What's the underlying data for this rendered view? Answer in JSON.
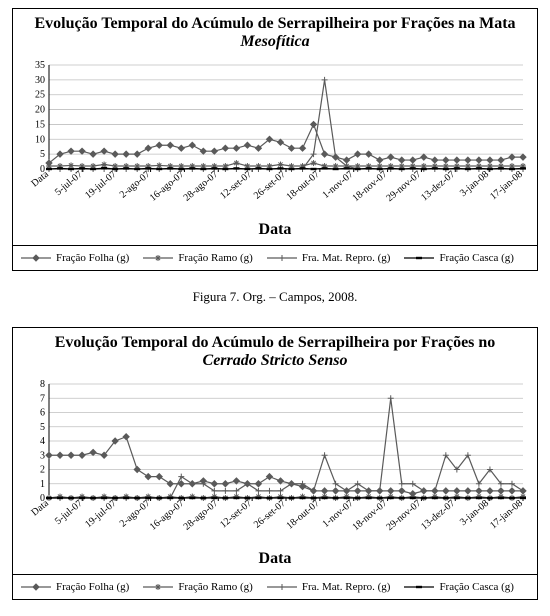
{
  "caption": "Figura 7. Org. – Campos, 2008.",
  "colors": {
    "axis": "#000000",
    "grid": "#bfbfbf",
    "series": [
      "#5a5a5a",
      "#5a5a5a",
      "#5a5a5a",
      "#000000"
    ],
    "plot_bg": "#ffffff",
    "panel_border": "#000000"
  },
  "typography": {
    "title_fontsize": 13,
    "subtitle_fontsize": 13,
    "axis_label_fontsize": 12,
    "tick_fontsize": 10,
    "legend_fontsize": 11
  },
  "x_categories": [
    "Data",
    "5-jul-07",
    "19-jul-07",
    "2-ago-07",
    "16-ago-07",
    "28-ago-07",
    "12-set-07",
    "26-set-07",
    "18-out-07",
    "1-nov-07",
    "18-nov-07",
    "29-nov-07",
    "13-dez-07",
    "3-jan-08",
    "17-jan-08"
  ],
  "x_axis_label": "Data",
  "legend_labels": [
    "Fração Folha (g)",
    "Fração Ramo (g)",
    "Fra. Mat. Repro. (g)",
    "Fração Casca (g)"
  ],
  "markers": [
    "diamond",
    "asterisk",
    "plus",
    "hbar"
  ],
  "line_width": 1.2,
  "marker_size": 6,
  "chart1": {
    "type": "line",
    "title": "Evolução Temporal do Acúmulo de Serrapilheira por Frações na Mata",
    "subtitle": "Mesofítica",
    "ylim": [
      0,
      35
    ],
    "ytick_step": 5,
    "series": [
      {
        "name": "Fração Folha (g)",
        "values": [
          2,
          5,
          6,
          6,
          5,
          6,
          5,
          5,
          5,
          7,
          8,
          8,
          7,
          8,
          6,
          6,
          7,
          7,
          8,
          7,
          10,
          9,
          7,
          7,
          15,
          5,
          4,
          3,
          5,
          5,
          3,
          4,
          3,
          3,
          4,
          3,
          3,
          3,
          3,
          3,
          3,
          3,
          4,
          4
        ]
      },
      {
        "name": "Fração Ramo (g)",
        "values": [
          1,
          1,
          1.2,
          1,
          1,
          1.5,
          1,
          1,
          1,
          1,
          1.2,
          1,
          1,
          1,
          1,
          1,
          1,
          2,
          1,
          1,
          1,
          1.5,
          1,
          1,
          2,
          1,
          1,
          1,
          1,
          1,
          1,
          1,
          1,
          1,
          1,
          1,
          1,
          1,
          1,
          1,
          1,
          1,
          1,
          1
        ]
      },
      {
        "name": "Fra. Mat. Repro. (g)",
        "values": [
          0,
          0,
          0,
          0,
          0,
          0,
          0,
          0,
          0,
          0,
          0,
          0,
          0,
          0,
          0,
          0,
          0,
          0,
          0,
          0,
          0,
          0,
          0,
          0,
          5,
          30,
          4,
          1,
          0,
          0,
          0,
          0,
          0,
          0,
          0,
          0,
          0,
          0,
          0,
          0,
          0,
          0,
          0,
          0
        ]
      },
      {
        "name": "Fração Casca (g)",
        "values": [
          0,
          0.2,
          0,
          0.2,
          0,
          0.3,
          0,
          0.2,
          0,
          0.2,
          0,
          0.2,
          0,
          0.2,
          0,
          0.2,
          0,
          0.2,
          0,
          0.2,
          0,
          0.2,
          0,
          0.2,
          0,
          0.2,
          0,
          0.2,
          0,
          0.2,
          0,
          0.2,
          0,
          0.2,
          0,
          0.2,
          0,
          0.2,
          0,
          0.2,
          0,
          0.2,
          0,
          0.2
        ]
      }
    ]
  },
  "chart2": {
    "type": "line",
    "title": "Evolução Temporal do Acúmulo de Serrapilheira por Frações no",
    "subtitle": "Cerrado Stricto Senso",
    "ylim": [
      0,
      8
    ],
    "ytick_step": 1,
    "series": [
      {
        "name": "Fração Folha (g)",
        "values": [
          3,
          3,
          3,
          3,
          3.2,
          3,
          4,
          4.3,
          2,
          1.5,
          1.5,
          1,
          1,
          1,
          1.2,
          1,
          1,
          1.2,
          1,
          1,
          1.5,
          1.2,
          1,
          0.8,
          0.5,
          0.5,
          0.5,
          0.5,
          0.5,
          0.5,
          0.5,
          0.5,
          0.5,
          0.3,
          0.5,
          0.5,
          0.5,
          0.5,
          0.5,
          0.5,
          0.5,
          0.5,
          0.5,
          0.5
        ]
      },
      {
        "name": "Fração Ramo (g)",
        "values": [
          0,
          0.1,
          0,
          0.1,
          0,
          0.1,
          0,
          0.1,
          0,
          0.1,
          0,
          0.1,
          0,
          0.1,
          0,
          0.1,
          0,
          0.1,
          0,
          0.1,
          0,
          0.1,
          0,
          0.1,
          0,
          0.1,
          0,
          0.1,
          0,
          0.1,
          0,
          0.1,
          0,
          0.1,
          0,
          0.1,
          0,
          0.1,
          0,
          0.1,
          0,
          0.1,
          0,
          0.1
        ]
      },
      {
        "name": "Fra. Mat. Repro. (g)",
        "values": [
          0,
          0,
          0,
          0,
          0,
          0,
          0,
          0,
          0,
          0,
          0,
          0,
          1.5,
          1,
          1,
          0.5,
          0.5,
          0.5,
          1,
          0.5,
          0.5,
          0.5,
          1,
          1,
          0.5,
          3,
          1,
          0.5,
          1,
          0.5,
          0.5,
          7,
          1,
          1,
          0.5,
          0.5,
          3,
          2,
          3,
          1,
          2,
          1,
          1,
          0.5
        ]
      },
      {
        "name": "Fração Casca (g)",
        "values": [
          0,
          0,
          0,
          0,
          0,
          0,
          0,
          0,
          0,
          0,
          0,
          0,
          0,
          0,
          0,
          0,
          0,
          0,
          0,
          0,
          0,
          0,
          0,
          0,
          0,
          0,
          0,
          0,
          0,
          0,
          0,
          0,
          0,
          0,
          0,
          0,
          0,
          0,
          0,
          0,
          0,
          0,
          0,
          0
        ]
      }
    ]
  }
}
